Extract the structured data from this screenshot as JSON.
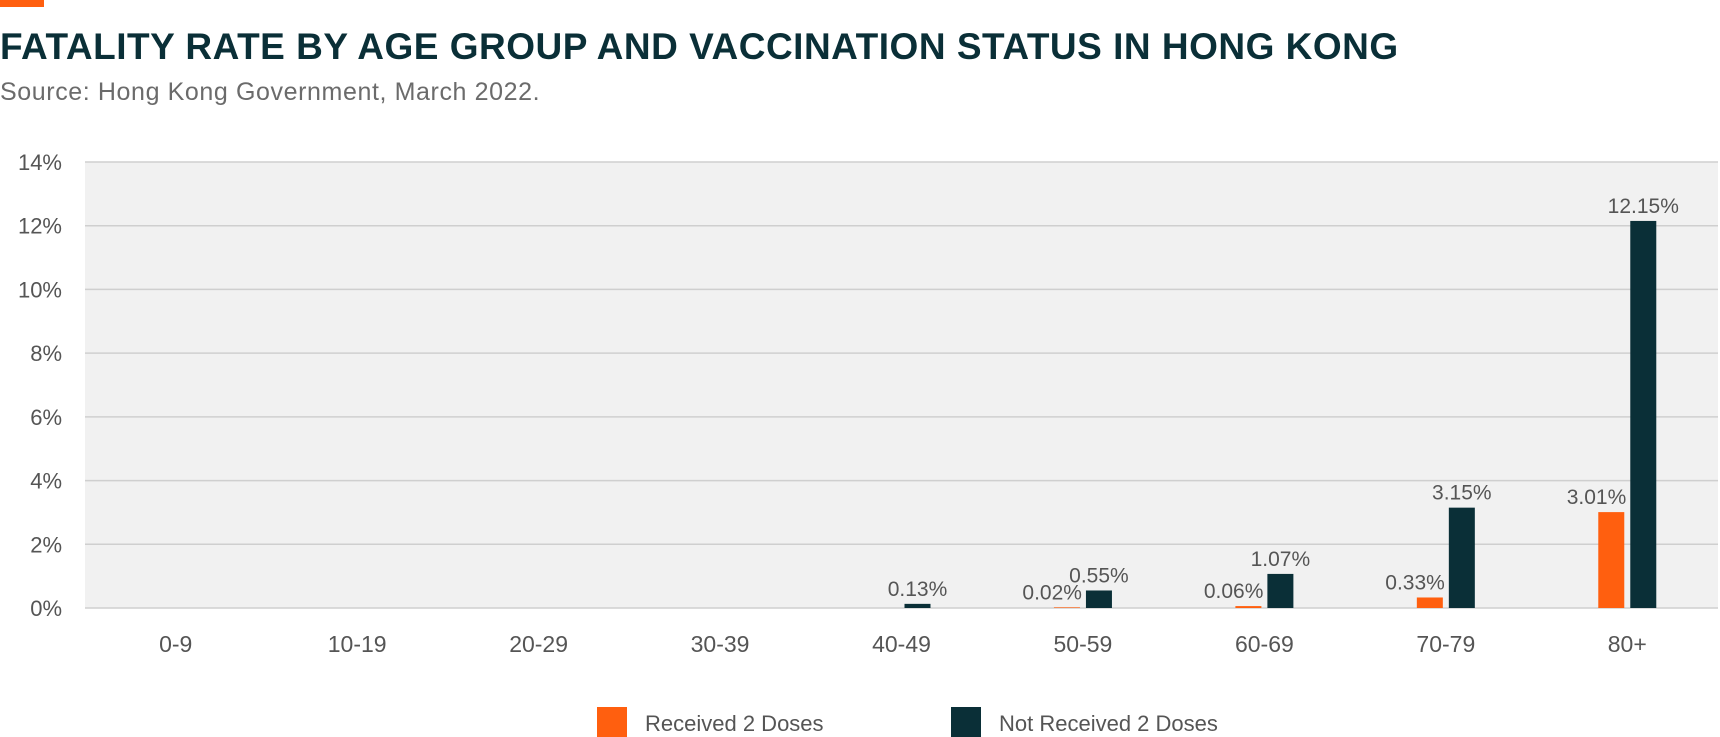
{
  "header": {
    "title": "FATALITY RATE BY AGE GROUP AND VACCINATION STATUS IN HONG KONG",
    "subtitle": "Source: Hong Kong Government, March 2022."
  },
  "colors": {
    "accent": "#ff5f0f",
    "received": "#ff5f0f",
    "not_received": "#0a2f37",
    "plot_background": "#f1f1f1",
    "gridline": "#cfcfcf",
    "text": "#555555"
  },
  "chart_data": {
    "type": "bar",
    "title": "FATALITY RATE BY AGE GROUP AND VACCINATION STATUS IN HONG KONG",
    "subtitle": "Source: Hong Kong Government, March 2022.",
    "xlabel": "",
    "ylabel": "",
    "categories": [
      "0-9",
      "10-19",
      "20-29",
      "30-39",
      "40-49",
      "50-59",
      "60-69",
      "70-79",
      "80+"
    ],
    "series": [
      {
        "name": "Received 2 Doses",
        "values": [
          0,
          0,
          0,
          0,
          0,
          0.02,
          0.06,
          0.33,
          3.01
        ],
        "labels": [
          "",
          "",
          "",
          "",
          "",
          "0.02%",
          "0.06%",
          "0.33%",
          "3.01%"
        ]
      },
      {
        "name": "Not Received 2 Doses",
        "values": [
          0,
          0,
          0,
          0,
          0.13,
          0.55,
          1.07,
          3.15,
          12.15
        ],
        "labels": [
          "",
          "",
          "",
          "",
          "0.13%",
          "0.55%",
          "1.07%",
          "3.15%",
          "12.15%"
        ]
      }
    ],
    "ylim": [
      0,
      14
    ],
    "yticks": [
      0,
      2,
      4,
      6,
      8,
      10,
      12,
      14
    ],
    "ytick_labels": [
      "0%",
      "2%",
      "4%",
      "6%",
      "8%",
      "10%",
      "12%",
      "14%"
    ],
    "grid": true,
    "legend_position": "bottom-center"
  }
}
